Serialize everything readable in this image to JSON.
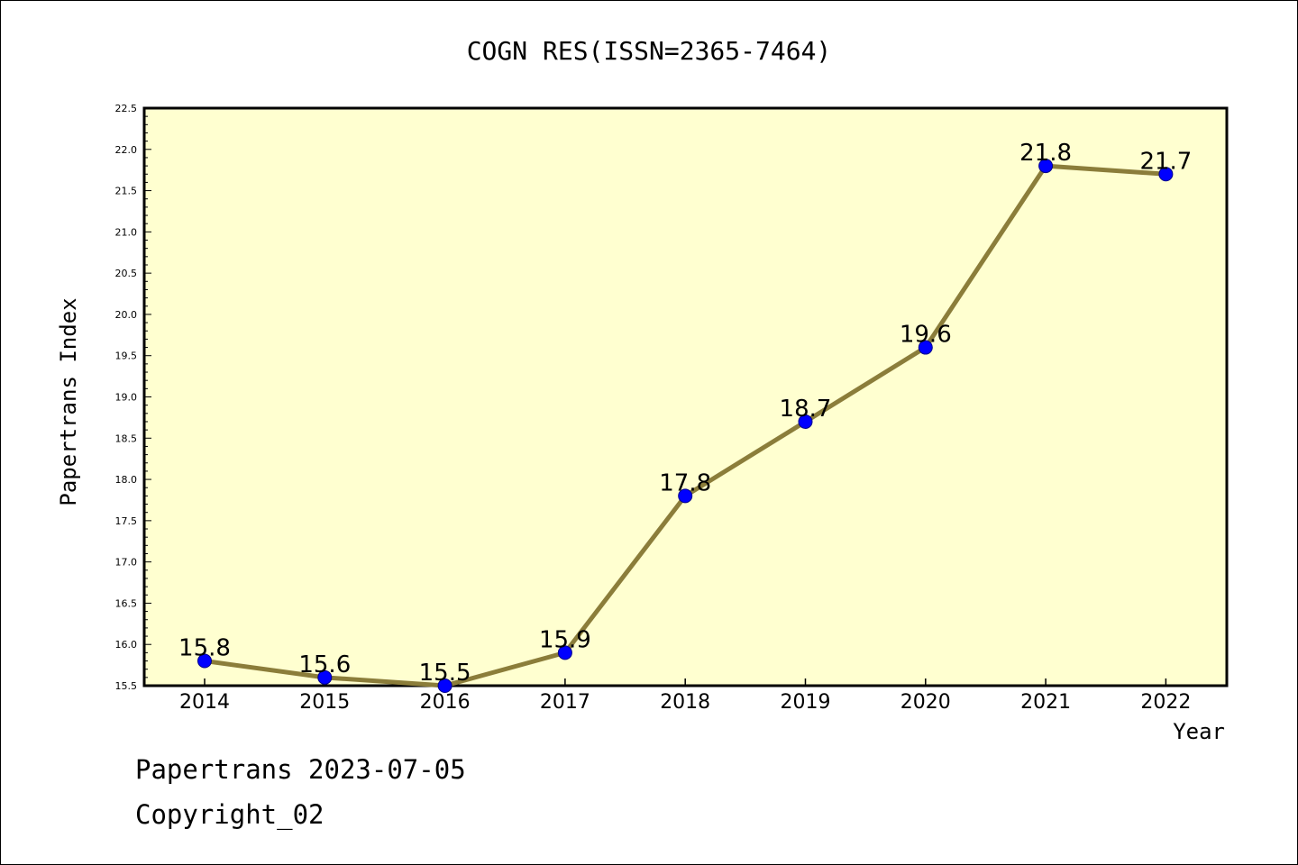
{
  "chart_data": {
    "type": "line",
    "title": "COGN RES(ISSN=2365-7464)",
    "xlabel": "Year",
    "ylabel": "Papertrans Index",
    "categories": [
      "2014",
      "2015",
      "2016",
      "2017",
      "2018",
      "2019",
      "2020",
      "2021",
      "2022"
    ],
    "values": [
      15.8,
      15.6,
      15.5,
      15.9,
      17.8,
      18.7,
      19.6,
      21.8,
      21.7
    ],
    "data_labels": [
      "15.8",
      "15.6",
      "15.5",
      "15.9",
      "17.8",
      "18.7",
      "19.6",
      "21.8",
      "21.7"
    ],
    "ylim": [
      15.5,
      22.5
    ],
    "yticks": [
      "15.5",
      "16.0",
      "16.5",
      "17.0",
      "17.5",
      "18.0",
      "18.5",
      "19.0",
      "19.5",
      "20.0",
      "20.5",
      "21.0",
      "21.5",
      "22.0",
      "22.5"
    ],
    "grid": false,
    "legend": "none",
    "colors": {
      "plot_background": "#ffffd0",
      "line": "#8b7d3a",
      "marker": "#0000ff"
    }
  },
  "footer": {
    "date_line": "Papertrans 2023-07-05",
    "copyright_line": "Copyright_02"
  }
}
